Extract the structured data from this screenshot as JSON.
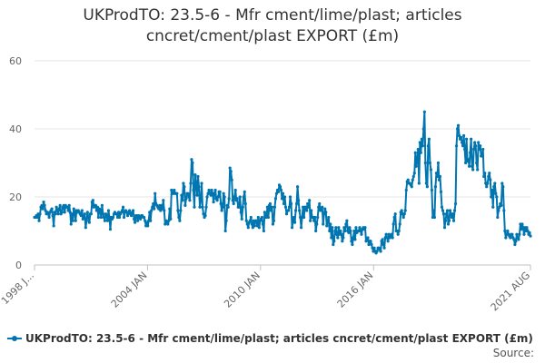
{
  "chart_data": {
    "type": "line",
    "title_lines": [
      "UKProdTO: 23.5-6 - Mfr cment/lime/plast; articles",
      "cncret/cment/plast EXPORT (£m)"
    ],
    "x_start": "1998 JAN",
    "x_end": "2021 AUG",
    "x_ticks": [
      "1998 J...",
      "2004 JAN",
      "2010 JAN",
      "2016 JAN",
      "2021 AUG"
    ],
    "y_ticks": [
      "0",
      "20",
      "40",
      "60"
    ],
    "ylim": [
      0,
      60
    ],
    "grid": true,
    "legend_position": "bottom",
    "color": "#0075b0",
    "series": [
      {
        "name": "UKProdTO: 23.5-6 - Mfr cment/lime/plast; articles cncret/cment/plast EXPORT (£m)",
        "values": [
          14,
          14,
          14.5,
          14,
          15,
          13,
          15,
          17,
          17.5,
          16.5,
          18.5,
          17.5,
          16,
          15,
          15.5,
          15,
          14,
          15.5,
          16,
          16.5,
          14.5,
          11.5,
          15.5,
          15,
          17,
          16,
          15,
          16.5,
          17.5,
          15,
          15.5,
          17,
          17.5,
          15.5,
          17.5,
          17,
          17,
          16,
          17.5,
          15.5,
          12,
          15,
          13,
          16.5,
          15.5,
          13,
          16,
          15.5,
          16,
          15.5,
          15,
          14.5,
          16,
          13.5,
          14,
          15,
          11,
          13,
          15.5,
          14,
          12.5,
          15,
          15,
          18.5,
          19,
          17,
          17.5,
          17.5,
          16,
          17,
          14,
          16.5,
          16,
          14,
          17.5,
          15,
          14,
          13,
          15,
          14.5,
          13,
          16,
          14,
          10.5,
          14,
          13.5,
          14,
          15,
          15.5,
          15,
          15,
          14,
          15.5,
          14,
          15,
          15.5,
          16,
          17,
          14,
          15.5,
          16,
          15.5,
          14.5,
          15.5,
          16,
          15,
          14.5,
          15.5,
          16,
          13.5,
          12.5,
          14.5,
          14.5,
          13,
          14.5,
          14,
          13.5,
          14.5,
          14.5,
          14,
          14,
          13,
          11.5,
          12.5,
          11.5,
          13,
          15.5,
          13,
          16,
          17,
          18,
          16.5,
          21,
          18,
          17.5,
          17,
          16.5,
          17.5,
          16,
          17.5,
          16.5,
          19,
          16,
          12,
          13,
          12.5,
          12,
          13,
          16.5,
          13.5,
          22,
          21,
          21,
          22,
          21,
          21,
          21,
          16,
          14,
          13,
          16,
          20.5,
          19,
          24,
          23,
          17.5,
          19.5,
          21,
          21,
          20,
          19,
          24,
          31,
          30,
          22,
          17,
          26.5,
          24,
          20.5,
          26,
          23,
          17,
          19,
          24,
          17,
          15,
          14,
          14.5,
          17,
          20,
          21,
          22,
          21,
          20.5,
          22,
          21,
          18.5,
          21,
          22,
          19.5,
          19,
          20,
          21.5,
          21.5,
          18,
          16,
          17,
          21,
          20,
          10,
          13,
          17.5,
          17,
          19.5,
          28.5,
          27.5,
          25,
          19,
          18,
          20,
          22,
          19,
          19.5,
          17,
          17,
          20,
          15.5,
          13.5,
          17,
          20,
          21.5,
          18,
          13,
          12,
          11,
          12.5,
          13,
          14,
          12,
          11,
          13,
          11.5,
          13,
          13,
          11.5,
          14,
          11,
          13,
          13.5,
          14,
          12,
          10,
          15.5,
          14,
          14,
          17,
          14,
          17.5,
          18,
          16,
          17,
          12,
          13,
          17,
          19.5,
          21,
          22,
          21.5,
          23.5,
          23,
          22,
          19.5,
          21,
          18,
          20,
          17,
          15,
          16,
          16,
          17,
          20,
          18,
          11,
          13,
          14,
          12.5,
          16,
          18,
          23,
          19,
          16,
          14,
          11,
          14,
          17,
          14,
          17,
          17,
          16,
          18,
          17,
          19,
          13,
          16,
          14,
          14,
          13,
          14,
          10,
          12,
          14,
          17,
          18,
          16,
          16.5,
          17,
          12,
          15,
          16.5,
          15.5,
          11.5,
          13,
          14,
          10,
          12,
          8,
          11,
          6,
          7,
          10,
          11,
          9,
          8,
          11,
          9,
          10,
          9,
          7,
          8,
          11,
          10,
          12,
          13,
          10,
          9.5,
          11,
          10,
          7,
          6,
          8,
          10,
          7.5,
          11,
          9.5,
          10,
          10,
          11,
          10,
          9,
          10.5,
          11,
          10.5,
          11,
          7,
          7.5,
          8,
          6,
          7,
          7,
          6,
          5,
          4,
          5,
          4,
          3.5,
          4,
          5,
          5,
          4.5,
          4,
          7,
          7.5,
          6,
          5,
          8,
          9,
          8,
          7,
          9,
          8,
          8.5,
          9,
          8,
          12,
          14,
          15,
          10,
          10,
          9,
          10,
          12,
          15.5,
          16,
          15,
          14,
          15,
          16,
          22,
          24.5,
          25,
          24,
          24,
          23.5,
          23,
          25,
          26,
          27,
          33,
          29,
          31,
          34,
          24,
          36,
          33,
          37,
          35,
          40,
          45,
          30,
          24,
          23,
          35,
          37,
          30,
          28,
          22,
          14,
          16,
          14,
          23,
          27,
          26,
          30,
          25,
          26,
          21.5,
          17,
          16,
          15,
          11,
          13,
          15,
          16,
          12,
          13,
          16,
          15,
          14,
          15,
          13,
          16,
          18,
          35,
          40,
          41,
          38,
          37,
          37.5,
          36,
          35,
          38,
          34,
          30,
          37,
          30.5,
          31,
          29,
          33,
          37,
          29,
          28,
          34,
          36,
          35,
          30,
          28,
          36,
          34,
          35,
          32,
          32,
          34,
          26,
          27,
          24,
          23,
          24,
          26,
          27,
          25,
          20,
          22,
          17,
          23,
          24,
          21,
          20,
          14,
          16,
          17,
          18,
          17.5,
          24,
          23,
          16,
          10,
          8,
          9,
          10,
          9,
          8.5,
          8,
          9,
          9,
          8,
          7.5,
          6,
          7,
          9,
          8,
          7.5,
          9,
          12,
          10.5,
          12,
          11,
          9,
          11,
          10,
          11,
          10,
          9,
          9.5,
          8.5
        ]
      }
    ]
  },
  "legend": {
    "label": "UKProdTO: 23.5-6 - Mfr cment/lime/plast; articles cncret/cment/plast EXPORT (£m)"
  },
  "source_label": "Source:"
}
